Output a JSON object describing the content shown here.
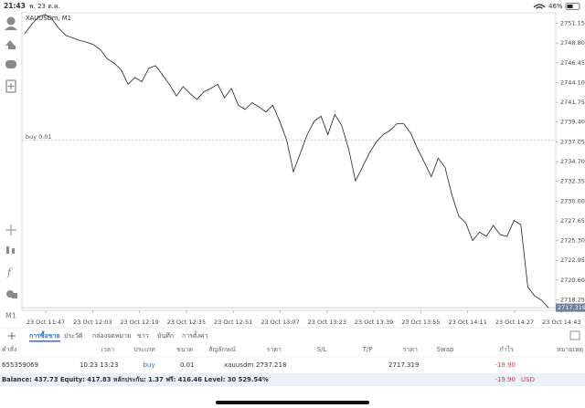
{
  "status_bar": {
    "time": "21:43",
    "date": "พ. 23 ต.ค.",
    "battery": "46%"
  },
  "toolbar": {
    "timeframe": "M1"
  },
  "chart_data": {
    "type": "line",
    "title": "XAUUSDm, M1",
    "color": "#222222",
    "values": [
      2749.9,
      2751.0,
      2751.9,
      2752.2,
      2751.6,
      2750.5,
      2749.7,
      2749.4,
      2749.1,
      2748.9,
      2748.6,
      2748.0,
      2746.9,
      2746.4,
      2745.6,
      2743.9,
      2744.7,
      2744.2,
      2745.8,
      2746.1,
      2745.0,
      2743.9,
      2742.5,
      2743.6,
      2742.8,
      2742.1,
      2743.0,
      2743.4,
      2743.9,
      2742.3,
      2743.4,
      2741.4,
      2740.9,
      2741.7,
      2741.2,
      2740.6,
      2741.4,
      2739.5,
      2737.3,
      2733.5,
      2735.7,
      2737.9,
      2739.5,
      2740.1,
      2737.9,
      2740.3,
      2739.0,
      2736.2,
      2732.4,
      2734.0,
      2735.7,
      2737.0,
      2737.9,
      2738.4,
      2739.2,
      2739.2,
      2738.1,
      2736.2,
      2734.6,
      2732.9,
      2735.1,
      2734.0,
      2730.7,
      2728.2,
      2727.4,
      2725.3,
      2726.3,
      2725.8,
      2727.1,
      2726.0,
      2725.8,
      2727.7,
      2727.2,
      2719.8,
      2718.7,
      2718.2,
      2717.3
    ],
    "ylim": [
      2717.0,
      2752.4
    ],
    "yticks": [
      {
        "value": 2751.15,
        "label": "2751.150"
      },
      {
        "value": 2748.8,
        "label": "2748.800"
      },
      {
        "value": 2746.45,
        "label": "2746.450"
      },
      {
        "value": 2744.1,
        "label": "2744.100"
      },
      {
        "value": 2741.75,
        "label": "2741.750"
      },
      {
        "value": 2739.4,
        "label": "2739.400"
      },
      {
        "value": 2737.05,
        "label": "2737.050"
      },
      {
        "value": 2734.7,
        "label": "2734.700"
      },
      {
        "value": 2732.35,
        "label": "2732.350"
      },
      {
        "value": 2730.0,
        "label": "2730.000"
      },
      {
        "value": 2727.65,
        "label": "2727.650"
      },
      {
        "value": 2725.3,
        "label": "2725.300"
      },
      {
        "value": 2722.95,
        "label": "2722.950"
      },
      {
        "value": 2720.6,
        "label": "2720.600"
      },
      {
        "value": 2718.25,
        "label": "2718.250"
      }
    ],
    "xtick_labels": [
      "23 Oct 11:47",
      "23 Oct 12:03",
      "23 Oct 12:19",
      "23 Oct 12:35",
      "23 Oct 12:51",
      "23 Oct 13:07",
      "23 Oct 13:23",
      "23 Oct 13:39",
      "23 Oct 13:55",
      "23 Oct 14:11",
      "23 Oct 14:27",
      "23 Oct 14:43"
    ],
    "position_line": {
      "value": 2737.218,
      "label": "buy 0.01"
    },
    "current_price": {
      "value": 2717.319,
      "label": "2717.319"
    }
  },
  "tabs": [
    "การซื้อขาย",
    "ประวัติ",
    "กล่องจดหมาย",
    "ข่าว",
    "บันทึก",
    "การตั้งค่า"
  ],
  "table": {
    "headers": [
      "คำสั่ง",
      "เวลา",
      "ประเภท",
      "ขนาด",
      "สัญลักษณ์",
      "ราคา",
      "S/L",
      "T/P",
      "ราคา",
      "Swap",
      "กำไร",
      "หมายเหตุ"
    ],
    "row": {
      "order": "655359069",
      "time": "10.23 13:23",
      "type": "buy",
      "volume": "0.01",
      "symbol": "xauusdm",
      "open_price": "2737.218",
      "price": "2717.319",
      "profit": "-19.90"
    },
    "summary": {
      "text": "Balance: 437.73 Equity: 417.83 หลักประกัน: 1.37 ฟรี: 416.46 Level: 30 529.54%",
      "profit": "-19.90",
      "currency": "USD"
    }
  }
}
